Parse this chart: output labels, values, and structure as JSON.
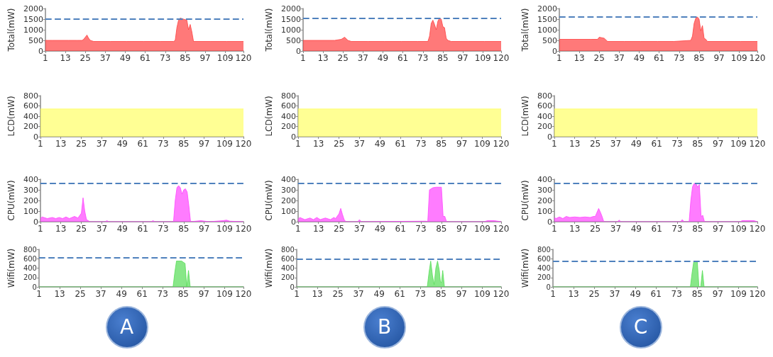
{
  "chart_data": [
    {
      "type": "area",
      "ylabel": "Total(mW)",
      "color": "#ff4040",
      "xlim": [
        1,
        120
      ],
      "xticks": [
        1,
        13,
        25,
        37,
        49,
        61,
        73,
        85,
        97,
        109,
        120
      ],
      "ylim": [
        0,
        2000
      ],
      "yticks": [
        0,
        500,
        1000,
        1500,
        2000
      ],
      "ref_lines": [
        {
          "axis": "y",
          "value": 1500,
          "color": "#4f81bd",
          "line_style": "dashed"
        }
      ],
      "x": [
        1,
        5,
        10,
        15,
        20,
        23,
        24,
        26,
        27,
        28,
        30,
        40,
        50,
        60,
        70,
        78,
        79,
        80,
        81,
        82,
        84,
        86,
        87,
        88,
        89,
        90,
        100,
        110,
        120
      ],
      "values": [
        500,
        500,
        500,
        500,
        500,
        500,
        550,
        750,
        600,
        500,
        450,
        450,
        450,
        450,
        450,
        450,
        500,
        1100,
        1450,
        1550,
        1500,
        1450,
        1000,
        1250,
        900,
        450,
        450,
        450,
        450
      ]
    },
    {
      "type": "area",
      "ylabel": "Total(mW)",
      "color": "#ff4040",
      "xlim": [
        1,
        120
      ],
      "xticks": [
        1,
        13,
        25,
        37,
        49,
        61,
        73,
        85,
        97,
        109,
        120
      ],
      "ylim": [
        0,
        2000
      ],
      "yticks": [
        0,
        500,
        1000,
        1500,
        2000
      ],
      "ref_lines": [
        {
          "axis": "y",
          "value": 1550,
          "color": "#4f81bd",
          "line_style": "dashed"
        }
      ],
      "x": [
        1,
        10,
        20,
        24,
        26,
        28,
        30,
        40,
        50,
        60,
        70,
        76,
        77,
        78,
        79,
        80,
        81,
        82,
        83,
        84,
        85,
        86,
        87,
        88,
        90,
        100,
        110,
        120
      ],
      "values": [
        500,
        500,
        500,
        550,
        650,
        500,
        450,
        450,
        450,
        450,
        450,
        450,
        700,
        1300,
        1450,
        1250,
        1000,
        1400,
        1550,
        1500,
        1150,
        1100,
        600,
        500,
        450,
        450,
        450,
        450
      ]
    },
    {
      "type": "area",
      "ylabel": "Total(mW)",
      "color": "#ff4040",
      "xlim": [
        1,
        120
      ],
      "xticks": [
        1,
        13,
        25,
        37,
        49,
        61,
        73,
        85,
        97,
        109,
        120
      ],
      "ylim": [
        0,
        2000
      ],
      "yticks": [
        0,
        500,
        1000,
        1500,
        2000
      ],
      "ref_lines": [
        {
          "axis": "y",
          "value": 1600,
          "color": "#4f81bd",
          "line_style": "dashed"
        }
      ],
      "x": [
        1,
        10,
        20,
        24,
        25,
        28,
        30,
        40,
        50,
        60,
        70,
        80,
        81,
        82,
        83,
        84,
        85,
        86,
        87,
        88,
        89,
        90,
        100,
        110,
        120
      ],
      "values": [
        550,
        550,
        550,
        550,
        650,
        600,
        450,
        450,
        450,
        450,
        450,
        500,
        700,
        1300,
        1550,
        1600,
        1500,
        950,
        1200,
        600,
        550,
        450,
        450,
        450,
        450
      ]
    },
    {
      "type": "area",
      "ylabel": "LCD(mW)",
      "color": "#ffff66",
      "xlim": [
        1,
        120
      ],
      "xticks": [
        1,
        13,
        25,
        37,
        49,
        61,
        73,
        85,
        97,
        109,
        120
      ],
      "ylim": [
        0,
        800
      ],
      "yticks": [
        0,
        200,
        400,
        600,
        800
      ],
      "x": [
        1,
        120
      ],
      "values": [
        540,
        540
      ]
    },
    {
      "type": "area",
      "ylabel": "LCD(mW)",
      "color": "#ffff66",
      "xlim": [
        1,
        120
      ],
      "xticks": [
        1,
        13,
        25,
        37,
        49,
        61,
        73,
        85,
        97,
        109,
        120
      ],
      "ylim": [
        0,
        800
      ],
      "yticks": [
        0,
        200,
        400,
        600,
        800
      ],
      "x": [
        1,
        120
      ],
      "values": [
        540,
        540
      ]
    },
    {
      "type": "area",
      "ylabel": "LCD(mW)",
      "color": "#ffff66",
      "xlim": [
        1,
        120
      ],
      "xticks": [
        1,
        13,
        25,
        37,
        49,
        61,
        73,
        85,
        97,
        109,
        120
      ],
      "ylim": [
        0,
        800
      ],
      "yticks": [
        0,
        200,
        400,
        600,
        800
      ],
      "x": [
        1,
        120
      ],
      "values": [
        540,
        540
      ]
    },
    {
      "type": "area",
      "ylabel": "CPU(mW)",
      "color": "#ff44ff",
      "xlim": [
        1,
        120
      ],
      "xticks": [
        1,
        13,
        25,
        37,
        49,
        61,
        73,
        85,
        97,
        109,
        120
      ],
      "ylim": [
        0,
        400
      ],
      "yticks": [
        0,
        100,
        200,
        300,
        400
      ],
      "ref_lines": [
        {
          "axis": "y",
          "value": 360,
          "color": "#4f81bd",
          "line_style": "dashed"
        }
      ],
      "x": [
        1,
        2,
        5,
        8,
        10,
        12,
        14,
        16,
        18,
        21,
        23,
        25,
        26,
        27,
        28,
        30,
        39,
        40,
        41,
        66,
        67,
        68,
        79,
        80,
        81,
        82,
        83,
        84,
        85,
        86,
        87,
        88,
        89,
        95,
        100,
        108,
        110,
        112,
        120
      ],
      "values": [
        30,
        45,
        30,
        40,
        30,
        40,
        30,
        45,
        30,
        50,
        35,
        80,
        225,
        100,
        20,
        0,
        0,
        10,
        0,
        0,
        10,
        0,
        0,
        200,
        320,
        340,
        320,
        260,
        300,
        310,
        280,
        150,
        0,
        10,
        0,
        10,
        15,
        5,
        0
      ]
    },
    {
      "type": "area",
      "ylabel": "CPU(mW)",
      "color": "#ff44ff",
      "xlim": [
        1,
        120
      ],
      "xticks": [
        1,
        13,
        25,
        37,
        49,
        61,
        73,
        85,
        97,
        109,
        120
      ],
      "ylim": [
        0,
        400
      ],
      "yticks": [
        0,
        100,
        200,
        300,
        400
      ],
      "ref_lines": [
        {
          "axis": "y",
          "value": 360,
          "color": "#4f81bd",
          "line_style": "dashed"
        }
      ],
      "x": [
        1,
        2,
        5,
        8,
        10,
        12,
        14,
        17,
        20,
        22,
        23,
        25,
        26,
        27,
        28,
        29,
        36,
        37,
        38,
        74,
        76,
        77,
        78,
        80,
        82,
        84,
        85,
        86,
        87,
        88,
        110,
        112,
        116,
        120
      ],
      "values": [
        20,
        40,
        20,
        35,
        20,
        40,
        20,
        35,
        20,
        40,
        30,
        75,
        125,
        70,
        20,
        0,
        0,
        20,
        0,
        5,
        5,
        0,
        300,
        320,
        325,
        325,
        325,
        50,
        50,
        0,
        0,
        10,
        10,
        0
      ]
    },
    {
      "type": "area",
      "ylabel": "CPU(mW)",
      "color": "#ff44ff",
      "xlim": [
        1,
        120
      ],
      "xticks": [
        1,
        13,
        25,
        37,
        49,
        61,
        73,
        85,
        97,
        109,
        120
      ],
      "ylim": [
        0,
        400
      ],
      "yticks": [
        0,
        100,
        200,
        300,
        400
      ],
      "ref_lines": [
        {
          "axis": "y",
          "value": 360,
          "color": "#4f81bd",
          "line_style": "dashed"
        }
      ],
      "x": [
        1,
        2,
        4,
        6,
        8,
        10,
        13,
        16,
        19,
        22,
        24,
        25,
        27,
        28,
        29,
        30,
        38,
        39,
        40,
        75,
        76,
        77,
        80,
        81,
        82,
        83,
        84,
        85,
        86,
        87,
        88,
        89,
        110,
        111,
        113,
        118,
        120
      ],
      "values": [
        40,
        30,
        45,
        30,
        50,
        40,
        45,
        40,
        45,
        40,
        50,
        50,
        125,
        90,
        50,
        0,
        0,
        15,
        0,
        0,
        20,
        0,
        0,
        200,
        330,
        360,
        360,
        325,
        350,
        50,
        60,
        0,
        0,
        10,
        10,
        10,
        0
      ]
    },
    {
      "type": "area",
      "ylabel": "Wifi(mW)",
      "color": "#55dd55",
      "xlim": [
        1,
        120
      ],
      "xticks": [
        1,
        13,
        25,
        37,
        49,
        61,
        73,
        85,
        97,
        109,
        120
      ],
      "ylim": [
        0,
        800
      ],
      "yticks": [
        0,
        200,
        400,
        600,
        800
      ],
      "ref_lines": [
        {
          "axis": "y",
          "value": 620,
          "color": "#4f81bd",
          "line_style": "dashed"
        }
      ],
      "annotations": [
        "A"
      ],
      "x": [
        1,
        79,
        80,
        81,
        84,
        86,
        87,
        88,
        89,
        120
      ],
      "values": [
        0,
        0,
        300,
        550,
        550,
        500,
        0,
        350,
        0,
        0
      ]
    },
    {
      "type": "area",
      "ylabel": "Wifi(mW)",
      "color": "#55dd55",
      "xlim": [
        1,
        120
      ],
      "xticks": [
        1,
        13,
        25,
        37,
        49,
        61,
        73,
        85,
        97,
        109,
        120
      ],
      "ylim": [
        0,
        800
      ],
      "yticks": [
        0,
        200,
        400,
        600,
        800
      ],
      "ref_lines": [
        {
          "axis": "y",
          "value": 600,
          "color": "#4f81bd",
          "line_style": "dashed"
        }
      ],
      "annotations": [
        "B"
      ],
      "x": [
        1,
        77,
        78,
        79,
        80,
        81,
        82,
        83,
        84,
        84.7,
        85.3,
        86,
        87,
        120
      ],
      "values": [
        0,
        0,
        300,
        550,
        250,
        50,
        400,
        550,
        350,
        100,
        100,
        350,
        0,
        0
      ]
    },
    {
      "type": "area",
      "ylabel": "Wifi(mW)",
      "color": "#55dd55",
      "xlim": [
        1,
        120
      ],
      "xticks": [
        1,
        13,
        25,
        37,
        49,
        61,
        73,
        85,
        97,
        109,
        120
      ],
      "ylim": [
        0,
        800
      ],
      "yticks": [
        0,
        200,
        400,
        600,
        800
      ],
      "ref_lines": [
        {
          "axis": "y",
          "value": 550,
          "color": "#4f81bd",
          "line_style": "dashed"
        }
      ],
      "annotations": [
        "C"
      ],
      "x": [
        1,
        81,
        82,
        83,
        85,
        86,
        87,
        88,
        89,
        120
      ],
      "values": [
        0,
        0,
        300,
        550,
        550,
        0,
        0,
        350,
        0,
        0
      ]
    }
  ]
}
